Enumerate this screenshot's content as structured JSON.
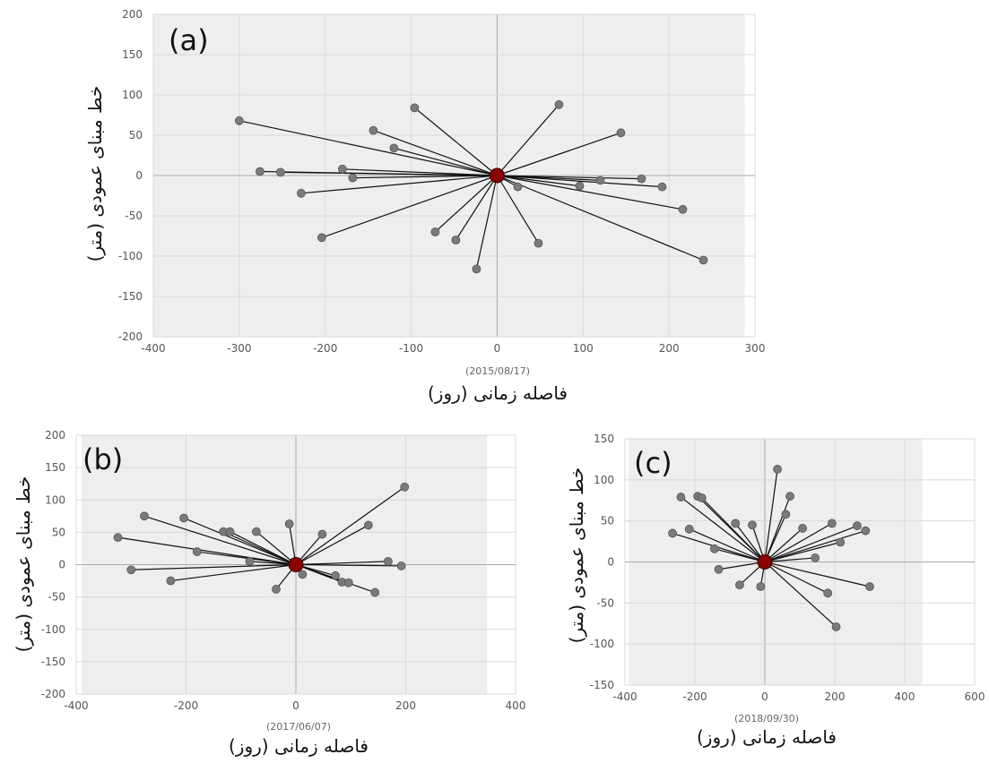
{
  "chart_data": [
    {
      "type": "scatter",
      "panel_label": "(a)",
      "reference_date": "(2015/08/17)",
      "xlabel": "فاصله زمانی (روز)",
      "ylabel": "خط مبنای عمودی (متر)",
      "xlim": [
        -400,
        300
      ],
      "ylim": [
        -200,
        200
      ],
      "x_ticks": [
        -400,
        -300,
        -200,
        -100,
        0,
        100,
        200,
        300
      ],
      "y_ticks": [
        -200,
        -150,
        -100,
        -50,
        0,
        50,
        100,
        150,
        200
      ],
      "shaded_x_range": [
        -400,
        288
      ],
      "grid": true,
      "master": [
        0,
        0
      ],
      "colors": {
        "point": "#7a7a7a",
        "line": "#111111",
        "master": "#8b0000",
        "shade": "#eeeeee",
        "grid": "#d8d8d8"
      },
      "points": [
        [
          -300,
          68
        ],
        [
          -276,
          5
        ],
        [
          -252,
          4
        ],
        [
          -228,
          -22
        ],
        [
          -204,
          -77
        ],
        [
          -180,
          8
        ],
        [
          -168,
          -3
        ],
        [
          -144,
          56
        ],
        [
          -120,
          34
        ],
        [
          -96,
          84
        ],
        [
          -72,
          -70
        ],
        [
          -48,
          -80
        ],
        [
          -24,
          -116
        ],
        [
          24,
          -14
        ],
        [
          48,
          -84
        ],
        [
          72,
          88
        ],
        [
          96,
          -13
        ],
        [
          120,
          -6
        ],
        [
          144,
          53
        ],
        [
          168,
          -4
        ],
        [
          192,
          -14
        ],
        [
          216,
          -42
        ],
        [
          240,
          -105
        ]
      ]
    },
    {
      "type": "scatter",
      "panel_label": "(b)",
      "reference_date": "(2017/06/07)",
      "xlabel": "فاصله زمانی (روز)",
      "ylabel": "خط مبنای عمودی (متر)",
      "xlim": [
        -400,
        400
      ],
      "ylim": [
        -200,
        200
      ],
      "x_ticks": [
        -400,
        -200,
        0,
        200,
        400
      ],
      "y_ticks": [
        -200,
        -150,
        -100,
        -50,
        0,
        50,
        100,
        150,
        200
      ],
      "shaded_x_range": [
        -390,
        348
      ],
      "grid": true,
      "master": [
        0,
        0
      ],
      "colors": {
        "point": "#7a7a7a",
        "line": "#111111",
        "master": "#8b0000",
        "shade": "#eeeeee",
        "grid": "#d8d8d8"
      },
      "points": [
        [
          -324,
          42
        ],
        [
          -300,
          -8
        ],
        [
          -276,
          75
        ],
        [
          -228,
          -25
        ],
        [
          -204,
          72
        ],
        [
          -180,
          20
        ],
        [
          -132,
          51
        ],
        [
          -120,
          51
        ],
        [
          -84,
          5
        ],
        [
          -72,
          51
        ],
        [
          -36,
          -38
        ],
        [
          -12,
          63
        ],
        [
          12,
          -15
        ],
        [
          48,
          47
        ],
        [
          72,
          -17
        ],
        [
          84,
          -27
        ],
        [
          96,
          -28
        ],
        [
          132,
          61
        ],
        [
          144,
          -43
        ],
        [
          168,
          5
        ],
        [
          192,
          -2
        ],
        [
          198,
          120
        ]
      ]
    },
    {
      "type": "scatter",
      "panel_label": "(c)",
      "reference_date": "(2018/09/30)",
      "xlabel": "فاصله زمانی (روز)",
      "ylabel": "خط مبنای عمودی (متر)",
      "xlim": [
        -400,
        600
      ],
      "ylim": [
        -150,
        150
      ],
      "x_ticks": [
        -400,
        -200,
        0,
        200,
        400,
        600
      ],
      "y_ticks": [
        -150,
        -100,
        -50,
        0,
        50,
        100,
        150
      ],
      "shaded_x_range": [
        -390,
        450
      ],
      "grid": true,
      "master": [
        0,
        0
      ],
      "colors": {
        "point": "#7a7a7a",
        "line": "#111111",
        "master": "#8b0000",
        "shade": "#eeeeee",
        "grid": "#d8d8d8"
      },
      "points": [
        [
          -264,
          35
        ],
        [
          -240,
          79
        ],
        [
          -216,
          40
        ],
        [
          -192,
          80
        ],
        [
          -180,
          78
        ],
        [
          -144,
          16
        ],
        [
          -132,
          -9
        ],
        [
          -84,
          47
        ],
        [
          -72,
          -28
        ],
        [
          -36,
          45
        ],
        [
          -12,
          -30
        ],
        [
          36,
          113
        ],
        [
          60,
          58
        ],
        [
          72,
          80
        ],
        [
          108,
          41
        ],
        [
          144,
          5
        ],
        [
          180,
          -38
        ],
        [
          192,
          47
        ],
        [
          204,
          -79
        ],
        [
          216,
          24
        ],
        [
          264,
          44
        ],
        [
          288,
          38
        ],
        [
          300,
          -30
        ]
      ]
    }
  ]
}
